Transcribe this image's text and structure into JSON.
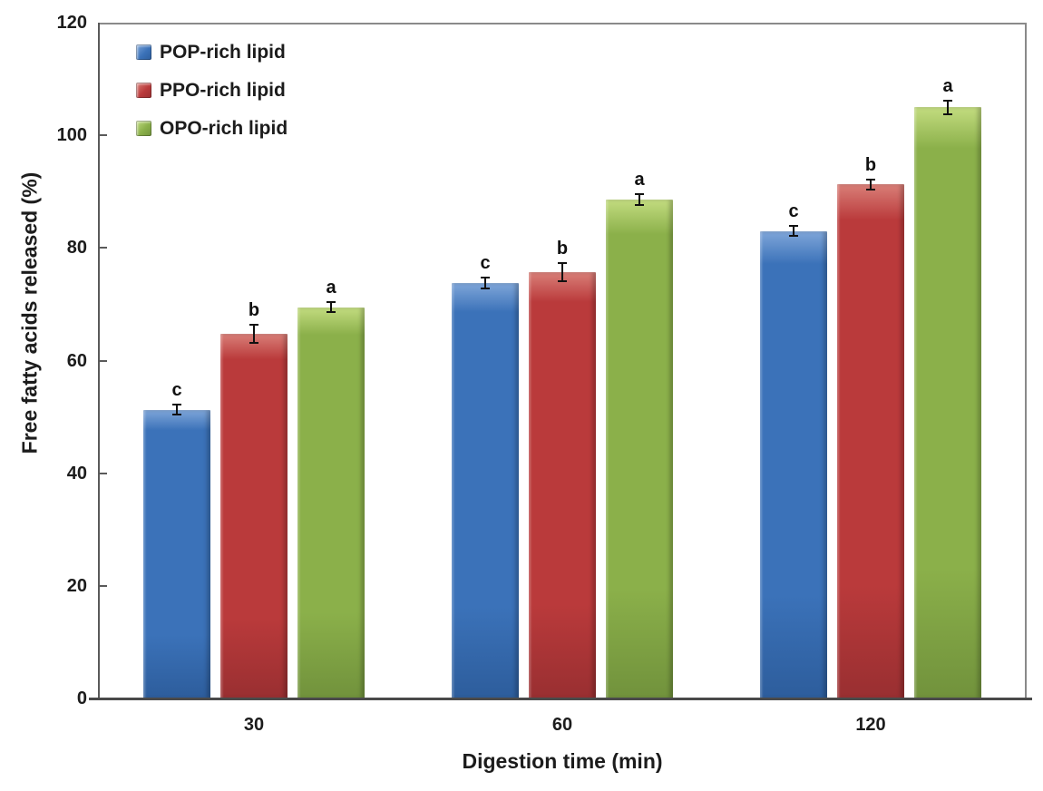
{
  "figure": {
    "background": "#ffffff",
    "text_color": "#1c1c1c",
    "axis_color": "#5a5a5a",
    "plot_border_color": "#8a8a8a"
  },
  "chart_data": {
    "type": "bar",
    "title": "",
    "xlabel": "Digestion time (min)",
    "ylabel": "Free fatty acids released (%)",
    "categories": [
      "30",
      "60",
      "120"
    ],
    "ylim": [
      0,
      120
    ],
    "yticks": [
      0,
      20,
      40,
      60,
      80,
      100,
      120
    ],
    "grid": false,
    "legend_position": "top-left",
    "error_bars": true,
    "significance_letters_note": "letters shown above bars per group",
    "series": [
      {
        "name": "POP-rich lipid",
        "color": "#3b72b9",
        "color_light": "#7fa6d9",
        "color_dark": "#2d5d9c",
        "values": [
          51.3,
          73.8,
          83.0
        ],
        "errors": [
          0.9,
          1.0,
          0.9
        ],
        "letters": [
          "c",
          "c",
          "c"
        ]
      },
      {
        "name": "PPO-rich lipid",
        "color": "#ba3a3b",
        "color_light": "#d97f78",
        "color_dark": "#992f31",
        "values": [
          64.8,
          75.7,
          91.3
        ],
        "errors": [
          1.6,
          1.6,
          0.9
        ],
        "letters": [
          "b",
          "b",
          "b"
        ]
      },
      {
        "name": "OPO-rich lipid",
        "color": "#8bb04a",
        "color_light": "#c3dc80",
        "color_dark": "#71923c",
        "values": [
          69.5,
          88.6,
          105.0
        ],
        "errors": [
          0.9,
          1.0,
          1.2
        ],
        "letters": [
          "a",
          "a",
          "a"
        ]
      }
    ]
  }
}
